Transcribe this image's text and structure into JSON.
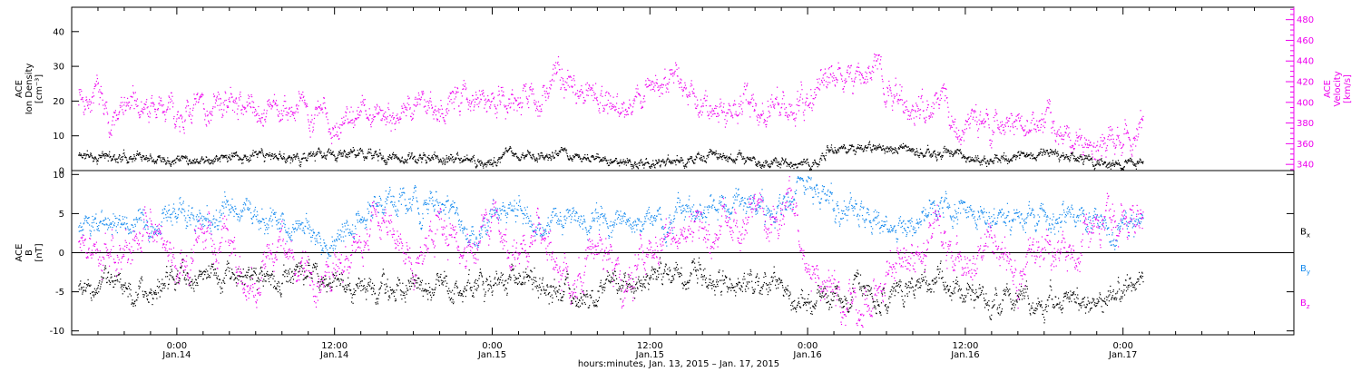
{
  "colors": {
    "black": "#000000",
    "magenta": "#ee00ee",
    "blue": "#1188ee"
  },
  "chart_data": [
    {
      "type": "scatter",
      "panel": "top",
      "ylabel_lines": [
        "ACE",
        "Ion Density",
        "[cm⁻³]"
      ],
      "ylim": [
        0,
        47
      ],
      "yticks": [
        0,
        10,
        20,
        30,
        40
      ],
      "y2label_lines": [
        "ACE",
        "Velocity",
        "[km/s]"
      ],
      "y2lim": [
        334,
        492
      ],
      "y2ticks": [
        340,
        360,
        380,
        400,
        420,
        440,
        460,
        480
      ],
      "xlim_hours": [
        -8,
        85
      ],
      "series": [
        {
          "name": "",
          "axis": "left",
          "color": "#000000",
          "x_start_hours": -7.5,
          "x_end_hours": 73.5,
          "anchors": [
            [
              -7.5,
              4.5
            ],
            [
              -5,
              4
            ],
            [
              -2,
              4.5
            ],
            [
              2,
              3.5
            ],
            [
              6,
              4
            ],
            [
              10,
              4
            ],
            [
              14,
              5
            ],
            [
              16,
              4
            ],
            [
              20,
              3.5
            ],
            [
              24,
              2.5
            ],
            [
              25,
              4.5
            ],
            [
              30,
              4.5
            ],
            [
              34,
              2
            ],
            [
              38,
              3
            ],
            [
              42,
              4
            ],
            [
              44,
              3
            ],
            [
              46,
              2.5
            ],
            [
              48,
              1.5
            ],
            [
              49,
              5
            ],
            [
              50,
              6
            ],
            [
              52,
              6.5
            ],
            [
              55,
              6
            ],
            [
              58,
              5
            ],
            [
              60,
              4.5
            ],
            [
              62,
              3
            ],
            [
              64,
              4
            ],
            [
              66,
              4.5
            ],
            [
              68,
              3.5
            ],
            [
              70,
              2.5
            ],
            [
              72,
              2
            ],
            [
              73.5,
              1.5
            ]
          ]
        },
        {
          "name": "",
          "axis": "right",
          "color": "#ee00ee",
          "x_start_hours": -7.5,
          "x_end_hours": 73.5,
          "anchors": [
            [
              -7.5,
              410
            ],
            [
              -6,
              405
            ],
            [
              -5,
              380
            ],
            [
              -4,
              395
            ],
            [
              -2,
              395
            ],
            [
              0,
              390
            ],
            [
              2,
              395
            ],
            [
              4,
              400
            ],
            [
              6,
              398
            ],
            [
              8,
              388
            ],
            [
              10,
              395
            ],
            [
              12,
              380
            ],
            [
              14,
              392
            ],
            [
              16,
              390
            ],
            [
              18,
              395
            ],
            [
              20,
              400
            ],
            [
              22,
              405
            ],
            [
              24,
              412
            ],
            [
              26,
              400
            ],
            [
              28,
              410
            ],
            [
              29,
              425
            ],
            [
              30,
              418
            ],
            [
              32,
              410
            ],
            [
              34,
              395
            ],
            [
              36,
              418
            ],
            [
              38,
              420
            ],
            [
              40,
              395
            ],
            [
              42,
              395
            ],
            [
              44,
              400
            ],
            [
              46,
              398
            ],
            [
              48,
              405
            ],
            [
              49,
              420
            ],
            [
              50,
              415
            ],
            [
              51,
              425
            ],
            [
              52,
              420
            ],
            [
              53,
              445
            ],
            [
              54,
              410
            ],
            [
              56,
              395
            ],
            [
              58,
              395
            ],
            [
              60,
              380
            ],
            [
              62,
              378
            ],
            [
              64,
              385
            ],
            [
              66,
              380
            ],
            [
              68,
              368
            ],
            [
              70,
              360
            ],
            [
              72,
              365
            ],
            [
              73.5,
              380
            ]
          ]
        }
      ]
    },
    {
      "type": "scatter",
      "panel": "bottom",
      "ylabel_lines": [
        "ACE",
        "B",
        "[nT]"
      ],
      "ylim": [
        -10.5,
        10.5
      ],
      "yticks": [
        -10,
        -5,
        0,
        5,
        10
      ],
      "xlim_hours": [
        -8,
        85
      ],
      "xticks": [
        {
          "hours": 0,
          "time": "0:00",
          "date": "Jan.14"
        },
        {
          "hours": 12,
          "time": "12:00",
          "date": "Jan.14"
        },
        {
          "hours": 24,
          "time": "0:00",
          "date": "Jan.15"
        },
        {
          "hours": 36,
          "time": "12:00",
          "date": "Jan.15"
        },
        {
          "hours": 48,
          "time": "0:00",
          "date": "Jan.16"
        },
        {
          "hours": 60,
          "time": "12:00",
          "date": "Jan.16"
        },
        {
          "hours": 72,
          "time": "0:00",
          "date": "Jan.17"
        }
      ],
      "xlabel": "hours:minutes, Jan. 13, 2015 – Jan. 17, 2015",
      "legend_placement": "right",
      "series": [
        {
          "name": "Bx",
          "legend_main": "B",
          "legend_sub": "x",
          "color": "#000000",
          "x_start_hours": -7.5,
          "x_end_hours": 73.5,
          "anchors": [
            [
              -7.5,
              -4
            ],
            [
              -5,
              -4
            ],
            [
              -3,
              -5
            ],
            [
              0,
              -3
            ],
            [
              4,
              -3
            ],
            [
              8,
              -4
            ],
            [
              10,
              -2
            ],
            [
              12,
              -4
            ],
            [
              14,
              -5
            ],
            [
              18,
              -4
            ],
            [
              22,
              -5
            ],
            [
              26,
              -3
            ],
            [
              30,
              -6
            ],
            [
              34,
              -4
            ],
            [
              38,
              -3
            ],
            [
              42,
              -4
            ],
            [
              46,
              -4
            ],
            [
              48,
              -7
            ],
            [
              50,
              -5
            ],
            [
              52,
              -5
            ],
            [
              54,
              -6
            ],
            [
              56,
              -4
            ],
            [
              58,
              -3
            ],
            [
              60,
              -5
            ],
            [
              62,
              -6
            ],
            [
              64,
              -5
            ],
            [
              66,
              -6
            ],
            [
              68,
              -5
            ],
            [
              70,
              -6
            ],
            [
              72,
              -5
            ],
            [
              73.5,
              -4
            ]
          ]
        },
        {
          "name": "By",
          "legend_main": "B",
          "legend_sub": "y",
          "color": "#1188ee",
          "x_start_hours": -7.5,
          "x_end_hours": 73.5,
          "anchors": [
            [
              -7.5,
              3
            ],
            [
              -5,
              4
            ],
            [
              -2,
              3
            ],
            [
              0,
              4
            ],
            [
              4,
              5
            ],
            [
              8,
              4
            ],
            [
              10,
              2
            ],
            [
              12,
              1
            ],
            [
              14,
              5
            ],
            [
              16,
              7
            ],
            [
              18,
              6
            ],
            [
              20,
              6
            ],
            [
              22,
              3
            ],
            [
              24,
              4
            ],
            [
              26,
              5
            ],
            [
              28,
              3
            ],
            [
              30,
              5
            ],
            [
              32,
              4
            ],
            [
              34,
              4
            ],
            [
              36,
              5
            ],
            [
              38,
              5
            ],
            [
              40,
              5
            ],
            [
              42,
              6
            ],
            [
              44,
              6
            ],
            [
              46,
              6
            ],
            [
              48,
              9
            ],
            [
              49,
              8.5
            ],
            [
              50,
              6
            ],
            [
              52,
              5
            ],
            [
              54,
              3
            ],
            [
              56,
              4
            ],
            [
              58,
              6
            ],
            [
              60,
              6
            ],
            [
              62,
              4
            ],
            [
              64,
              5
            ],
            [
              66,
              4
            ],
            [
              68,
              5
            ],
            [
              70,
              3
            ],
            [
              72,
              3
            ],
            [
              73.5,
              4
            ]
          ]
        },
        {
          "name": "Bz",
          "legend_main": "B",
          "legend_sub": "z",
          "color": "#ee00ee",
          "x_start_hours": -7.5,
          "x_end_hours": 73.5,
          "anchors": [
            [
              -7.5,
              2
            ],
            [
              -5,
              0
            ],
            [
              -2,
              3
            ],
            [
              0,
              -2
            ],
            [
              2,
              3
            ],
            [
              4,
              0
            ],
            [
              6,
              -4
            ],
            [
              8,
              2
            ],
            [
              10,
              -4
            ],
            [
              12,
              -3
            ],
            [
              14,
              2
            ],
            [
              16,
              4
            ],
            [
              18,
              -1
            ],
            [
              20,
              3
            ],
            [
              22,
              0
            ],
            [
              24,
              5
            ],
            [
              26,
              -2
            ],
            [
              28,
              3
            ],
            [
              30,
              -5
            ],
            [
              32,
              2
            ],
            [
              34,
              -4
            ],
            [
              36,
              1
            ],
            [
              38,
              3
            ],
            [
              40,
              2
            ],
            [
              42,
              4
            ],
            [
              44,
              5
            ],
            [
              46,
              6
            ],
            [
              47,
              7
            ],
            [
              48,
              -2
            ],
            [
              50,
              -5
            ],
            [
              52,
              -6
            ],
            [
              54,
              -3
            ],
            [
              56,
              1
            ],
            [
              58,
              2
            ],
            [
              60,
              -2
            ],
            [
              62,
              2
            ],
            [
              64,
              -3
            ],
            [
              66,
              2
            ],
            [
              68,
              -1
            ],
            [
              70,
              3
            ],
            [
              72,
              4
            ],
            [
              73.5,
              4
            ]
          ]
        }
      ]
    }
  ]
}
